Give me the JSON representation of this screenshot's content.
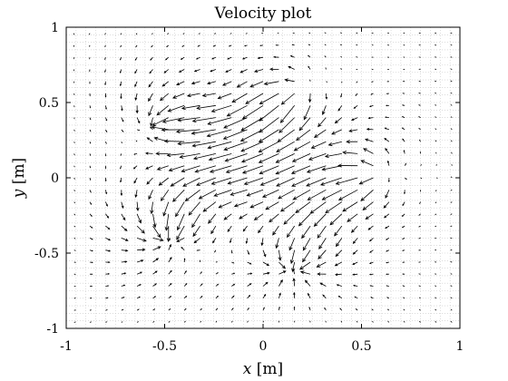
{
  "chart_data": {
    "type": "quiver",
    "title": "Velocity plot",
    "xlabel_symbol": "x",
    "xlabel_unit": " [m]",
    "ylabel_symbol": "y",
    "ylabel_unit": " [m]",
    "xlim": [
      -1,
      1
    ],
    "ylim": [
      -1,
      1
    ],
    "xticks": [
      -1,
      -0.5,
      0,
      0.5,
      1
    ],
    "xtick_labels": [
      "-1",
      "-0.5",
      "0",
      "0.5",
      "1"
    ],
    "yticks": [
      -1,
      -0.5,
      0,
      0.5,
      1
    ],
    "ytick_labels": [
      "-1",
      "-0.5",
      "0",
      "0.5",
      "1"
    ],
    "grid": true,
    "grid_spacing": 0.05,
    "arrow_spacing": 0.08,
    "arrow_color": "#000000",
    "grid_color": "#c8c8c8",
    "singular_points": [
      {
        "x": -0.52,
        "y": 0.36,
        "type": "sink",
        "strength": 1.0
      },
      {
        "x": 0.18,
        "y": 0.58,
        "type": "source",
        "strength": 1.0
      },
      {
        "x": -0.48,
        "y": -0.38,
        "type": "sink",
        "strength": 1.0
      },
      {
        "x": 0.58,
        "y": 0.02,
        "type": "source",
        "strength": 1.0
      },
      {
        "x": 0.16,
        "y": -0.6,
        "type": "sink",
        "strength": 1.0
      }
    ],
    "vortices": [
      {
        "x": -0.15,
        "y": 0.52,
        "gamma": -1.3
      },
      {
        "x": -0.22,
        "y": -0.18,
        "gamma": 1.2
      },
      {
        "x": 0.45,
        "y": -0.25,
        "gamma": 1.0
      }
    ]
  }
}
